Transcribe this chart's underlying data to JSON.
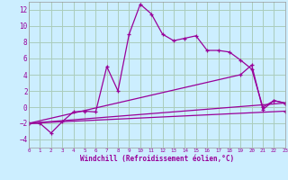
{
  "background_color": "#cceeff",
  "grid_color": "#aaccbb",
  "line_color": "#990099",
  "xlabel": "Windchill (Refroidissement éolien,°C)",
  "xlim": [
    0,
    23
  ],
  "ylim": [
    -5,
    13
  ],
  "yticks": [
    -4,
    -2,
    0,
    2,
    4,
    6,
    8,
    10,
    12
  ],
  "xticks": [
    0,
    1,
    2,
    3,
    4,
    5,
    6,
    7,
    8,
    9,
    10,
    11,
    12,
    13,
    14,
    15,
    16,
    17,
    18,
    19,
    20,
    21,
    22,
    23
  ],
  "series": [
    {
      "x": [
        0,
        1,
        2,
        3,
        4,
        5,
        6,
        7,
        8,
        9,
        10,
        11,
        12,
        13,
        14,
        15,
        16,
        17,
        18,
        19,
        20,
        21,
        22,
        23
      ],
      "y": [
        -2,
        -2,
        -3.2,
        -1.8,
        -0.6,
        -0.5,
        -0.6,
        5.0,
        2.0,
        9.0,
        12.7,
        11.5,
        9.0,
        8.2,
        8.5,
        8.8,
        7.0,
        7.0,
        6.8,
        5.8,
        4.7,
        0.0,
        0.8,
        0.5
      ]
    },
    {
      "x": [
        0,
        23
      ],
      "y": [
        -2,
        0.5
      ]
    },
    {
      "x": [
        0,
        19,
        20,
        21,
        22,
        23
      ],
      "y": [
        -2,
        4.0,
        5.2,
        -0.3,
        0.8,
        0.5
      ]
    },
    {
      "x": [
        0,
        23
      ],
      "y": [
        -2,
        -0.5
      ]
    }
  ]
}
